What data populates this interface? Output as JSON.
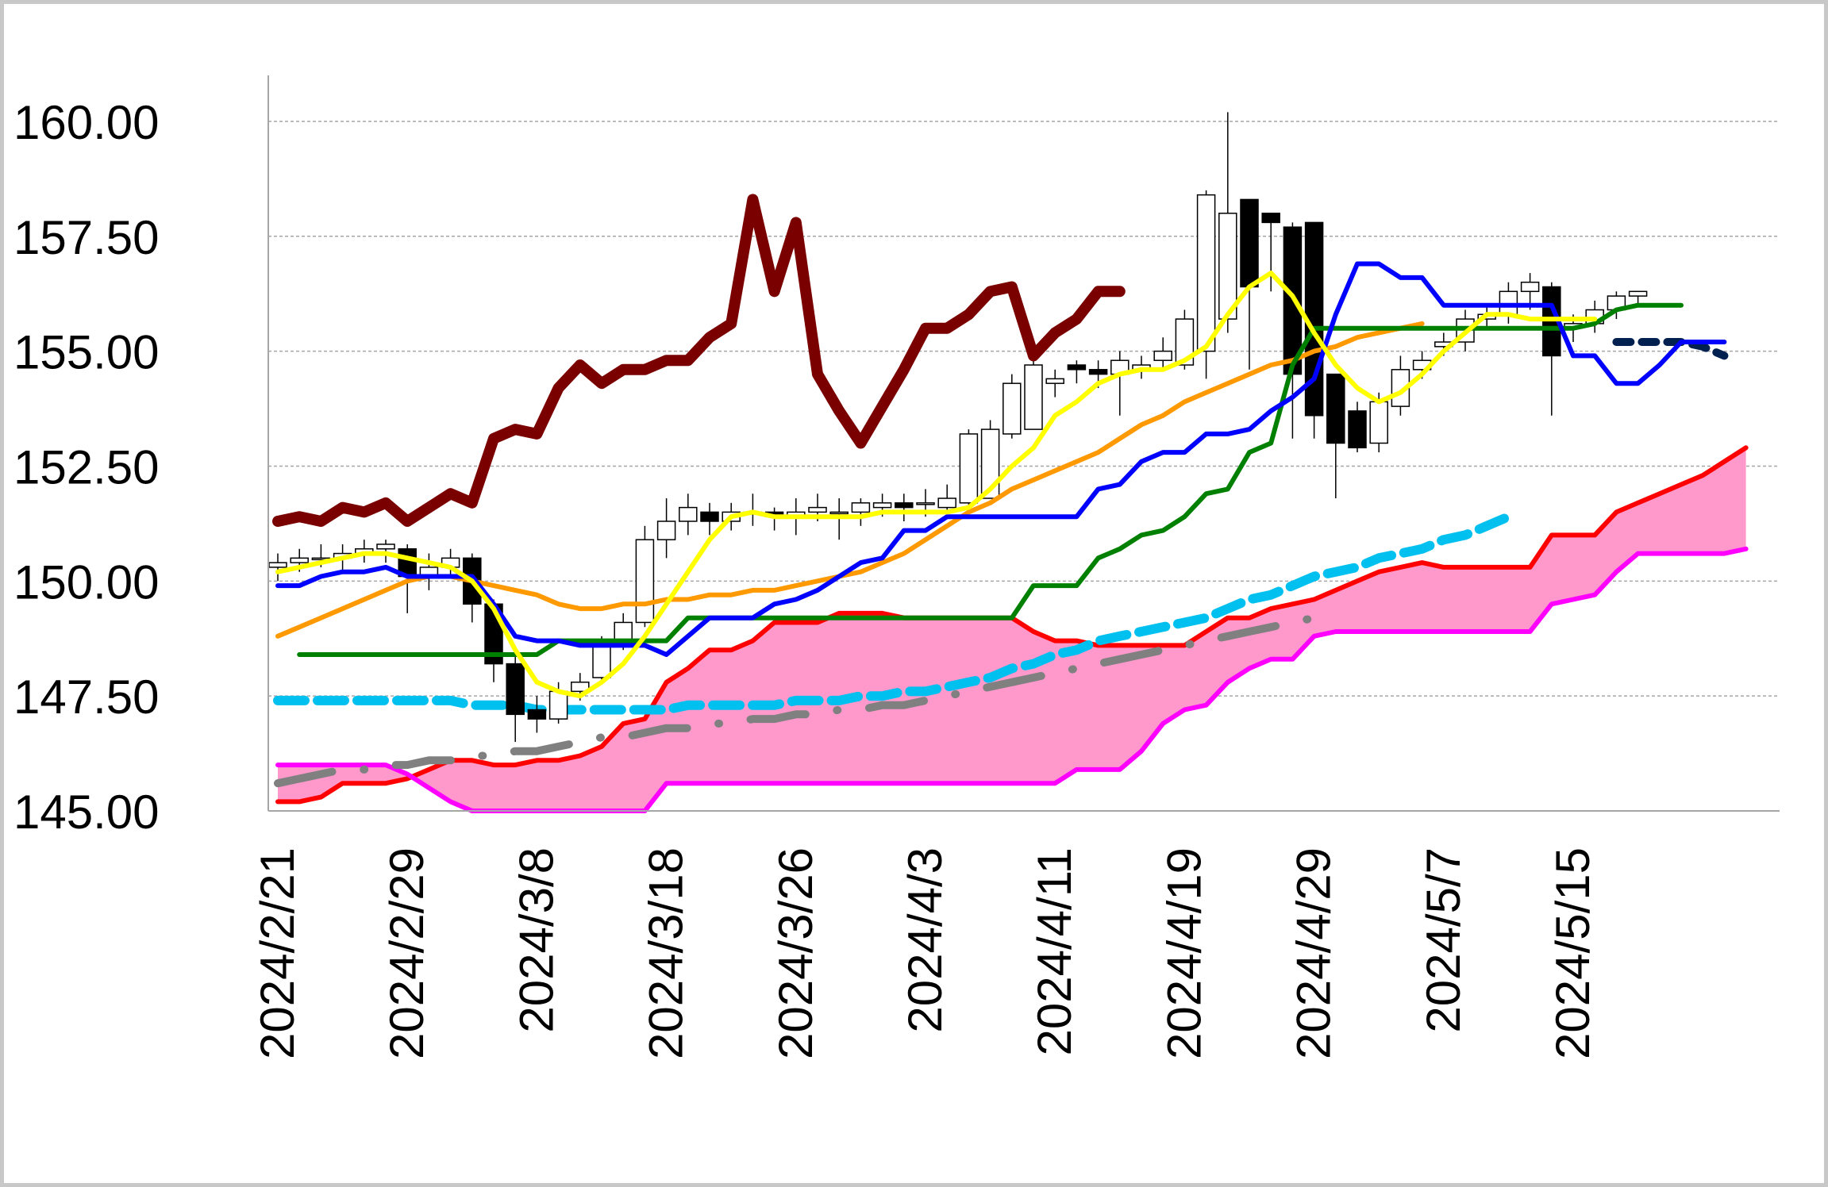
{
  "chart_data": {
    "type": "line",
    "subtype": "candlestick-ichimoku",
    "title": "",
    "xlabel": "",
    "ylabel": "",
    "ylim": [
      145.0,
      161.0
    ],
    "grid": true,
    "y_ticks": [
      "145.00",
      "147.50",
      "150.00",
      "152.50",
      "155.00",
      "157.50",
      "160.00"
    ],
    "y_tick_values": [
      145,
      147.5,
      150,
      152.5,
      155,
      157.5,
      160
    ],
    "x_count": 68,
    "x_tick_indices": [
      0,
      6,
      12,
      18,
      24,
      30,
      36,
      42,
      48,
      54,
      60
    ],
    "x_ticks": [
      "2024/2/21",
      "2024/2/29",
      "2024/3/8",
      "2024/3/18",
      "2024/3/26",
      "2024/4/3",
      "2024/4/11",
      "2024/4/19",
      "2024/4/29",
      "2024/5/7",
      "2024/5/15"
    ],
    "candles": {
      "x_start": 0,
      "open": [
        150.3,
        150.4,
        150.5,
        150.5,
        150.6,
        150.7,
        150.7,
        150.1,
        150.3,
        150.5,
        149.5,
        148.2,
        147.2,
        147.0,
        147.6,
        147.9,
        148.6,
        149.1,
        150.9,
        151.3,
        151.5,
        151.3,
        151.5,
        151.5,
        151.4,
        151.5,
        151.5,
        151.5,
        151.6,
        151.7,
        151.7,
        151.6,
        151.7,
        151.8,
        153.2,
        153.3,
        154.3,
        154.7,
        154.6,
        154.5,
        154.6,
        154.8,
        154.7,
        155.0,
        155.7,
        158.3,
        158.0,
        157.7,
        157.8,
        154.5,
        153.7,
        153.0,
        153.8,
        154.6,
        155.1,
        155.2,
        155.7,
        155.8,
        156.3,
        156.4,
        155.5,
        155.6,
        155.9,
        156.2
      ],
      "close": [
        150.4,
        150.5,
        150.5,
        150.6,
        150.7,
        150.8,
        150.1,
        150.3,
        150.5,
        149.5,
        148.2,
        147.1,
        147.0,
        147.6,
        147.8,
        148.6,
        149.1,
        150.9,
        151.3,
        151.6,
        151.3,
        151.5,
        151.5,
        151.4,
        151.5,
        151.6,
        151.5,
        151.7,
        151.7,
        151.6,
        151.7,
        151.8,
        153.2,
        153.3,
        154.3,
        154.7,
        154.4,
        154.6,
        154.5,
        154.8,
        154.7,
        155.0,
        155.7,
        158.4,
        158.0,
        156.4,
        157.8,
        154.5,
        153.6,
        153.0,
        152.9,
        153.9,
        154.6,
        154.8,
        155.2,
        155.7,
        155.8,
        156.3,
        156.5,
        154.9,
        155.6,
        155.9,
        156.2,
        156.3
      ],
      "high": [
        150.6,
        150.7,
        150.8,
        150.8,
        150.9,
        150.9,
        150.8,
        150.6,
        150.7,
        150.6,
        149.6,
        148.4,
        147.5,
        147.8,
        148.0,
        148.8,
        149.3,
        151.2,
        151.8,
        151.9,
        151.7,
        151.7,
        151.9,
        151.6,
        151.8,
        151.9,
        151.8,
        151.8,
        151.9,
        151.9,
        152.0,
        152.1,
        153.3,
        153.5,
        154.5,
        154.8,
        154.6,
        154.8,
        154.8,
        155.0,
        154.9,
        155.3,
        155.9,
        158.5,
        160.2,
        158.0,
        157.9,
        157.8,
        155.0,
        154.0,
        153.9,
        154.1,
        154.9,
        155.0,
        155.4,
        155.9,
        156.0,
        156.5,
        156.7,
        156.5,
        155.8,
        156.1,
        156.3,
        156.3
      ],
      "low": [
        150.0,
        150.2,
        150.3,
        150.2,
        150.4,
        150.4,
        149.3,
        149.8,
        150.1,
        149.1,
        147.8,
        146.5,
        146.7,
        146.9,
        147.4,
        147.8,
        148.5,
        149.0,
        150.5,
        151.0,
        151.0,
        151.1,
        151.2,
        151.1,
        151.0,
        151.3,
        150.9,
        151.2,
        151.4,
        151.3,
        151.4,
        151.5,
        151.6,
        153.0,
        153.1,
        154.1,
        154.0,
        154.3,
        154.2,
        153.6,
        154.4,
        154.6,
        154.6,
        154.4,
        155.4,
        154.6,
        156.3,
        153.1,
        153.1,
        151.8,
        152.8,
        152.8,
        153.6,
        154.4,
        154.9,
        155.0,
        155.5,
        155.6,
        155.9,
        153.6,
        155.2,
        155.4,
        155.7,
        156.0
      ]
    },
    "series": [
      {
        "name": "kijun",
        "color": "#008000",
        "style": "solid",
        "x_start": 1,
        "values": [
          148.4,
          148.4,
          148.4,
          148.4,
          148.4,
          148.4,
          148.4,
          148.4,
          148.4,
          148.4,
          148.4,
          148.4,
          148.7,
          148.7,
          148.7,
          148.7,
          148.7,
          148.7,
          149.2,
          149.2,
          149.2,
          149.2,
          149.2,
          149.2,
          149.2,
          149.2,
          149.2,
          149.2,
          149.2,
          149.2,
          149.2,
          149.2,
          149.2,
          149.2,
          149.9,
          149.9,
          149.9,
          150.5,
          150.7,
          151.0,
          151.1,
          151.4,
          151.9,
          152.0,
          152.8,
          153.0,
          154.7,
          155.5,
          155.5,
          155.5,
          155.5,
          155.5,
          155.5,
          155.5,
          155.5,
          155.5,
          155.5,
          155.5,
          155.5,
          155.5,
          155.6,
          155.9,
          156.0,
          156.0,
          156.0
        ]
      },
      {
        "name": "tenkan",
        "color": "#0000ff",
        "style": "solid",
        "x_start": 0,
        "values": [
          149.9,
          149.9,
          150.1,
          150.2,
          150.2,
          150.3,
          150.1,
          150.1,
          150.1,
          150.1,
          149.5,
          148.8,
          148.7,
          148.7,
          148.6,
          148.6,
          148.6,
          148.6,
          148.4,
          148.8,
          149.2,
          149.2,
          149.2,
          149.5,
          149.6,
          149.8,
          150.1,
          150.4,
          150.5,
          151.1,
          151.1,
          151.4,
          151.4,
          151.4,
          151.4,
          151.4,
          151.4,
          151.4,
          152.0,
          152.1,
          152.6,
          152.8,
          152.8,
          153.2,
          153.2,
          153.3,
          153.7,
          154.0,
          154.4,
          155.8,
          156.9,
          156.9,
          156.6,
          156.6,
          156.0,
          156.0,
          156.0,
          156.0,
          156.0,
          156.0,
          154.9,
          154.9,
          154.3,
          154.3,
          154.7,
          155.2,
          155.2,
          155.2
        ]
      },
      {
        "name": "ma-yellow",
        "color": "#ffff00",
        "style": "solid",
        "x_start": 0,
        "values": [
          150.2,
          150.3,
          150.4,
          150.5,
          150.6,
          150.6,
          150.5,
          150.4,
          150.3,
          150.0,
          149.4,
          148.5,
          147.8,
          147.6,
          147.5,
          147.8,
          148.2,
          148.8,
          149.5,
          150.2,
          150.9,
          151.4,
          151.5,
          151.4,
          151.4,
          151.4,
          151.4,
          151.4,
          151.5,
          151.5,
          151.5,
          151.5,
          151.6,
          152.0,
          152.5,
          152.9,
          153.6,
          153.9,
          154.3,
          154.5,
          154.6,
          154.6,
          154.8,
          155.1,
          155.8,
          156.4,
          156.7,
          156.2,
          155.4,
          154.7,
          154.2,
          153.9,
          154.1,
          154.5,
          155.0,
          155.4,
          155.8,
          155.8,
          155.7,
          155.7,
          155.7,
          155.7
        ]
      },
      {
        "name": "ma-orange",
        "color": "#ff9900",
        "style": "solid",
        "x_start": 0,
        "values": [
          148.8,
          149.0,
          149.2,
          149.4,
          149.6,
          149.8,
          150.0,
          150.1,
          150.1,
          150.0,
          149.9,
          149.8,
          149.7,
          149.5,
          149.4,
          149.4,
          149.5,
          149.5,
          149.6,
          149.6,
          149.7,
          149.7,
          149.8,
          149.8,
          149.9,
          150.0,
          150.1,
          150.2,
          150.4,
          150.6,
          150.9,
          151.2,
          151.5,
          151.7,
          152.0,
          152.2,
          152.4,
          152.6,
          152.8,
          153.1,
          153.4,
          153.6,
          153.9,
          154.1,
          154.3,
          154.5,
          154.7,
          154.8,
          155.0,
          155.1,
          155.3,
          155.4,
          155.5,
          155.6
        ]
      },
      {
        "name": "chikou",
        "color": "#7a0000",
        "style": "thick",
        "x_start": 0,
        "values": [
          151.3,
          151.4,
          151.3,
          151.6,
          151.5,
          151.7,
          151.3,
          151.6,
          151.9,
          151.7,
          153.1,
          153.3,
          153.2,
          154.2,
          154.7,
          154.3,
          154.6,
          154.6,
          154.8,
          154.8,
          155.3,
          155.6,
          158.3,
          156.3,
          157.8,
          154.5,
          153.7,
          153.0,
          153.8,
          154.6,
          155.5,
          155.5,
          155.8,
          156.3,
          156.4,
          154.9,
          155.4,
          155.7,
          156.3,
          156.3
        ]
      },
      {
        "name": "senkou-a",
        "color": "#ff0000",
        "style": "solid",
        "x_start": 0,
        "values": [
          145.2,
          145.2,
          145.3,
          145.6,
          145.6,
          145.6,
          145.7,
          145.9,
          146.1,
          146.1,
          146.0,
          146.0,
          146.1,
          146.1,
          146.2,
          146.4,
          146.9,
          147.0,
          147.8,
          148.1,
          148.5,
          148.5,
          148.7,
          149.1,
          149.1,
          149.1,
          149.3,
          149.3,
          149.3,
          149.2,
          149.2,
          149.2,
          149.2,
          149.2,
          149.2,
          148.9,
          148.7,
          148.7,
          148.6,
          148.6,
          148.6,
          148.6,
          148.6,
          148.9,
          149.2,
          149.2,
          149.4,
          149.5,
          149.6,
          149.8,
          150.0,
          150.2,
          150.3,
          150.4,
          150.3,
          150.3,
          150.3,
          150.3,
          150.3,
          151.0,
          151.0,
          151.0,
          151.5,
          151.7,
          151.9,
          152.1,
          152.3,
          152.6,
          152.9
        ]
      },
      {
        "name": "senkou-b",
        "color": "#ff00ff",
        "style": "solid",
        "x_start": 0,
        "values": [
          146.0,
          146.0,
          146.0,
          146.0,
          146.0,
          146.0,
          145.8,
          145.5,
          145.2,
          145.0,
          145.0,
          145.0,
          145.0,
          145.0,
          145.0,
          145.0,
          145.0,
          145.0,
          145.6,
          145.6,
          145.6,
          145.6,
          145.6,
          145.6,
          145.6,
          145.6,
          145.6,
          145.6,
          145.6,
          145.6,
          145.6,
          145.6,
          145.6,
          145.6,
          145.6,
          145.6,
          145.6,
          145.9,
          145.9,
          145.9,
          146.3,
          146.9,
          147.2,
          147.3,
          147.8,
          148.1,
          148.3,
          148.3,
          148.8,
          148.9,
          148.9,
          148.9,
          148.9,
          148.9,
          148.9,
          148.9,
          148.9,
          148.9,
          148.9,
          149.5,
          149.6,
          149.7,
          150.2,
          150.6,
          150.6,
          150.6,
          150.6,
          150.6,
          150.7
        ]
      },
      {
        "name": "trend-cyan",
        "color": "#00c0f0",
        "style": "dashed",
        "x_start": 0,
        "values": [
          147.4,
          147.4,
          147.4,
          147.4,
          147.4,
          147.4,
          147.4,
          147.4,
          147.4,
          147.3,
          147.3,
          147.3,
          147.2,
          147.2,
          147.2,
          147.2,
          147.2,
          147.2,
          147.2,
          147.3,
          147.3,
          147.3,
          147.3,
          147.3,
          147.4,
          147.4,
          147.4,
          147.5,
          147.5,
          147.6,
          147.6,
          147.7,
          147.8,
          147.9,
          148.1,
          148.2,
          148.4,
          148.5,
          148.7,
          148.8,
          148.9,
          149.0,
          149.1,
          149.2,
          149.4,
          149.6,
          149.7,
          149.9,
          150.1,
          150.2,
          150.3,
          150.5,
          150.6,
          150.7,
          150.9,
          151.0,
          151.2,
          151.4
        ]
      },
      {
        "name": "trend-gray",
        "color": "#808080",
        "style": "dashdot",
        "x_start": 0,
        "values": [
          145.6,
          145.7,
          145.8,
          145.9,
          145.9,
          146.0,
          146.0,
          146.1,
          146.1,
          146.2,
          146.2,
          146.3,
          146.3,
          146.4,
          146.5,
          146.6,
          146.6,
          146.7,
          146.8,
          146.8,
          146.9,
          146.9,
          147.0,
          147.0,
          147.1,
          147.1,
          147.2,
          147.2,
          147.3,
          147.3,
          147.4,
          147.5,
          147.6,
          147.7,
          147.8,
          147.9,
          148.0,
          148.1,
          148.2,
          148.3,
          148.4,
          148.5,
          148.6,
          148.7,
          148.8,
          148.9,
          149.0,
          149.1,
          149.2
        ]
      },
      {
        "name": "forecast-navy",
        "color": "#002050",
        "style": "dotted",
        "x_start": 62,
        "values": [
          155.2,
          155.2,
          155.2,
          155.2,
          155.1,
          154.9
        ]
      }
    ],
    "cloud_fill": "#ff99cc"
  }
}
